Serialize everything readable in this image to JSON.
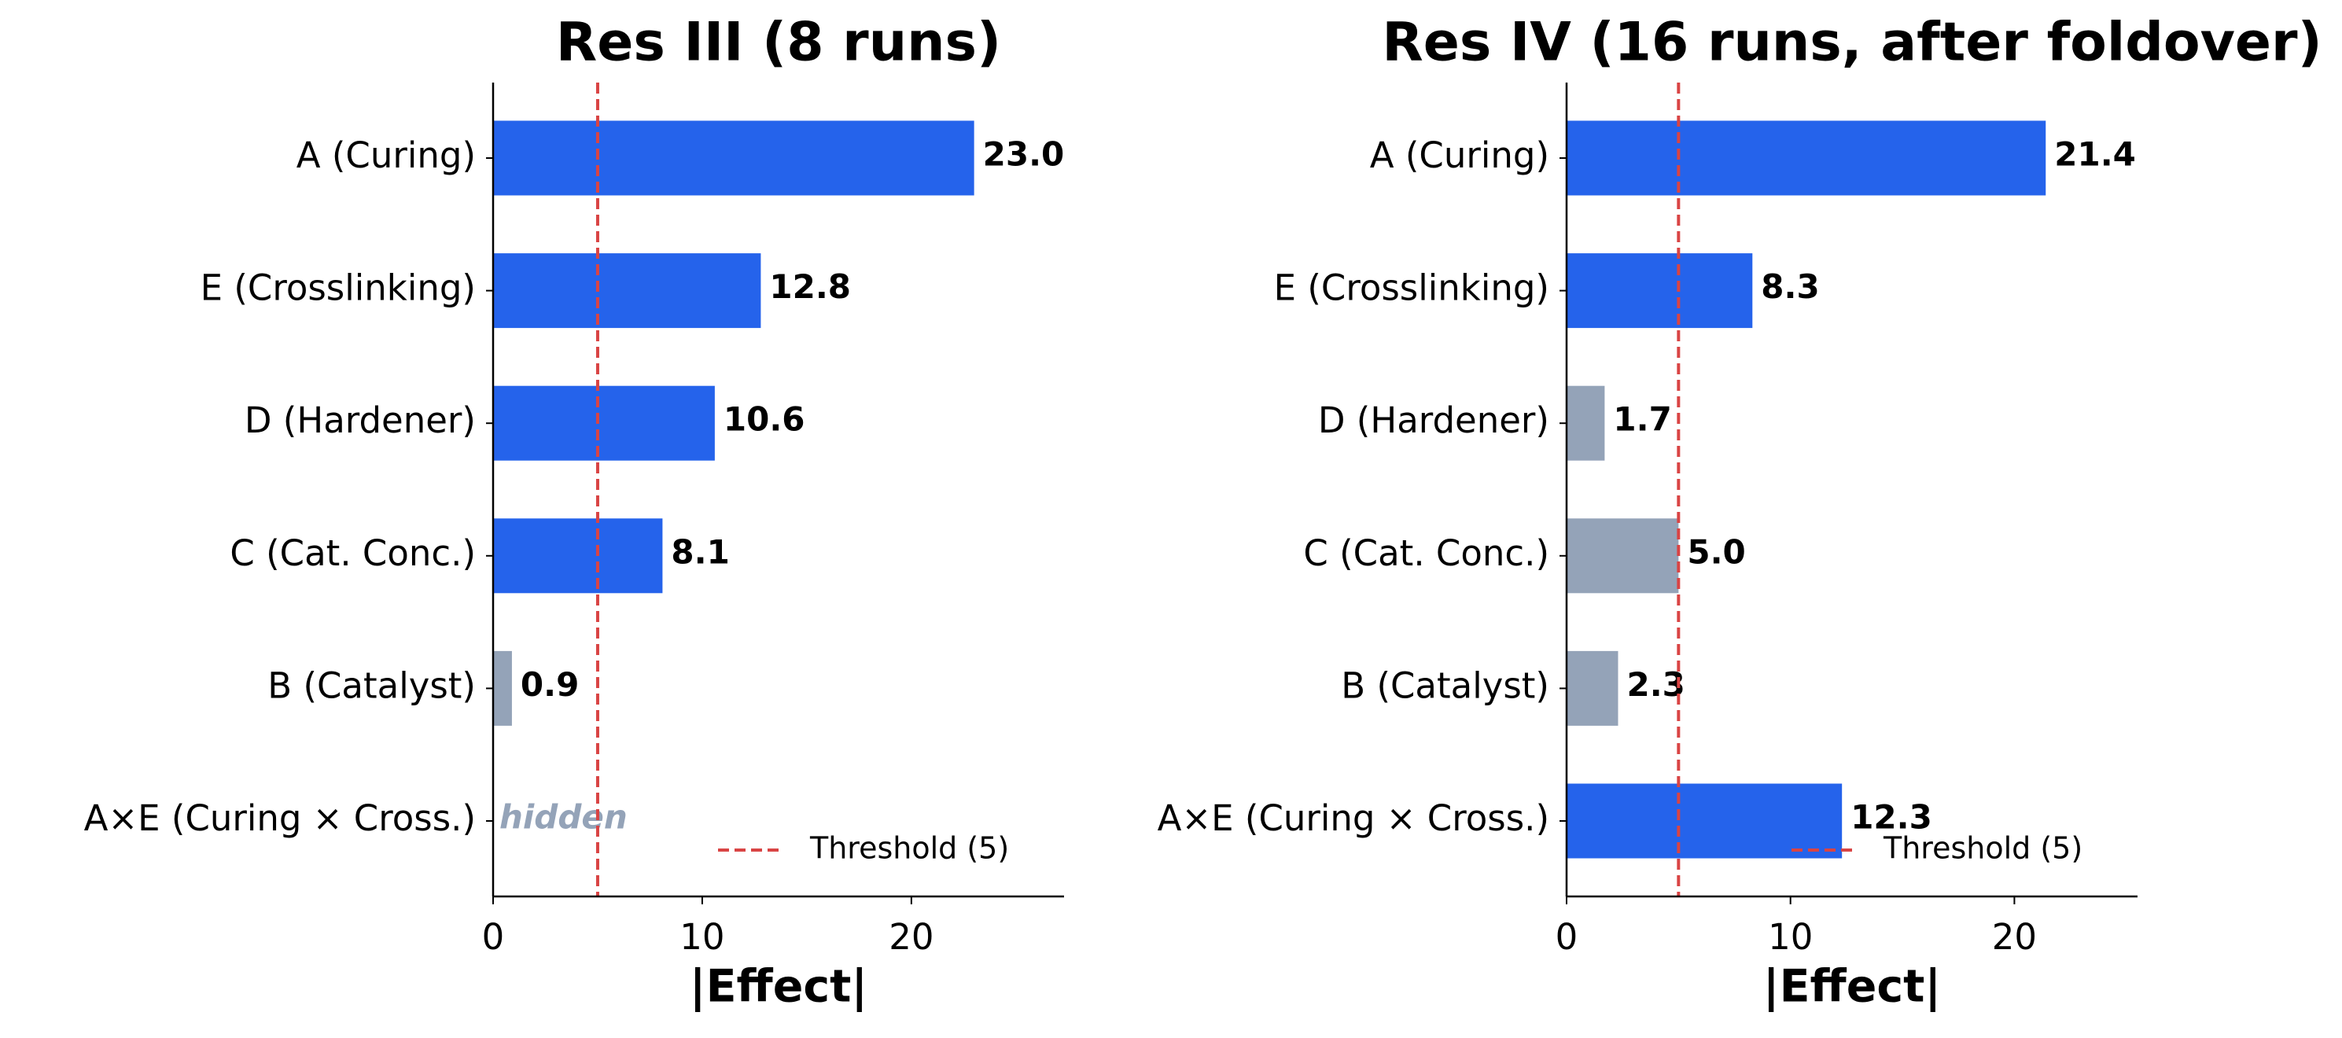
{
  "chart_data": [
    {
      "type": "bar",
      "orientation": "horizontal",
      "title": "Res III (8 runs)",
      "xlabel": "|Effect|",
      "categories": [
        "A (Curing)",
        "E (Crosslinking)",
        "D (Hardener)",
        "C (Cat. Conc.)",
        "B (Catalyst)",
        "A×E (Curing × Cross.)"
      ],
      "values": [
        23,
        12.8,
        10.6,
        8.1,
        0.9,
        null
      ],
      "value_labels": [
        "23.0",
        "12.8",
        "10.6",
        "8.1",
        "0.9",
        null
      ],
      "colors": [
        "#2563eb",
        "#2563eb",
        "#2563eb",
        "#2563eb",
        "#94a3b8",
        null
      ],
      "annotation": "hidden",
      "threshold": {
        "value": 5,
        "label": "Threshold (5)",
        "color": "#d94444"
      },
      "legend": "lower right",
      "xlim": [
        0,
        27.3
      ],
      "xticks": [
        0,
        10,
        20
      ]
    },
    {
      "type": "bar",
      "orientation": "horizontal",
      "title": "Res IV (16 runs, after foldover)",
      "xlabel": "|Effect|",
      "categories": [
        "A (Curing)",
        "E (Crosslinking)",
        "D (Hardener)",
        "C (Cat. Conc.)",
        "B (Catalyst)",
        "A×E (Curing × Cross.)"
      ],
      "values": [
        21.4,
        8.3,
        1.7,
        5,
        2.3,
        12.3
      ],
      "value_labels": [
        "21.4",
        "8.3",
        "1.7",
        "5.0",
        "2.3",
        "12.3"
      ],
      "colors": [
        "#2563eb",
        "#2563eb",
        "#94a3b8",
        "#94a3b8",
        "#94a3b8",
        "#2563eb"
      ],
      "threshold": {
        "value": 5,
        "label": "Threshold (5)",
        "color": "#d94444"
      },
      "legend": "lower right",
      "xlim": [
        0,
        25.5
      ],
      "xticks": [
        0,
        10,
        20
      ]
    }
  ]
}
